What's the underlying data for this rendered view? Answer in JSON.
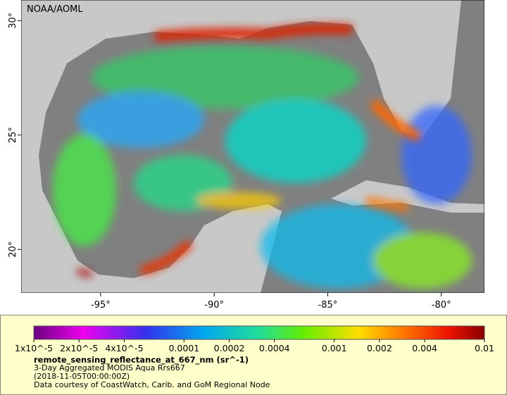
{
  "map": {
    "credit": "NOAA/AOML",
    "xlim": [
      -98.5,
      -78.1
    ],
    "ylim": [
      18.1,
      30.9
    ],
    "xticks": [
      {
        "value": -95,
        "label": "-95°"
      },
      {
        "value": -90,
        "label": "-90°"
      },
      {
        "value": -85,
        "label": "-85°"
      },
      {
        "value": -80,
        "label": "-80°"
      }
    ],
    "yticks": [
      {
        "value": 30,
        "label": "30°"
      },
      {
        "value": 25,
        "label": "25°"
      },
      {
        "value": 20,
        "label": "20°"
      }
    ]
  },
  "colorbar": {
    "scale": "log",
    "lim": [
      1e-05,
      0.01
    ],
    "ticks": [
      {
        "value": 1e-05,
        "label": "1x10^-5"
      },
      {
        "value": 2e-05,
        "label": "2x10^-5"
      },
      {
        "value": 4e-05,
        "label": "4x10^-5"
      },
      {
        "value": 0.0001,
        "label": "0.0001"
      },
      {
        "value": 0.0002,
        "label": "0.0002"
      },
      {
        "value": 0.0004,
        "label": "0.0004"
      },
      {
        "value": 0.001,
        "label": "0.001"
      },
      {
        "value": 0.002,
        "label": "0.002"
      },
      {
        "value": 0.004,
        "label": "0.004"
      },
      {
        "value": 0.01,
        "label": "0.01"
      }
    ],
    "variable": "remote_sensing_reflectance_at_667_nm (sr^-1)",
    "product": "3-Day Aggregated MODIS Aqua Rrs667",
    "time": "(2018-11-05T00:00:00Z)",
    "source": "Data courtesy of CoastWatch, Carib. and GoM Regional Node"
  }
}
